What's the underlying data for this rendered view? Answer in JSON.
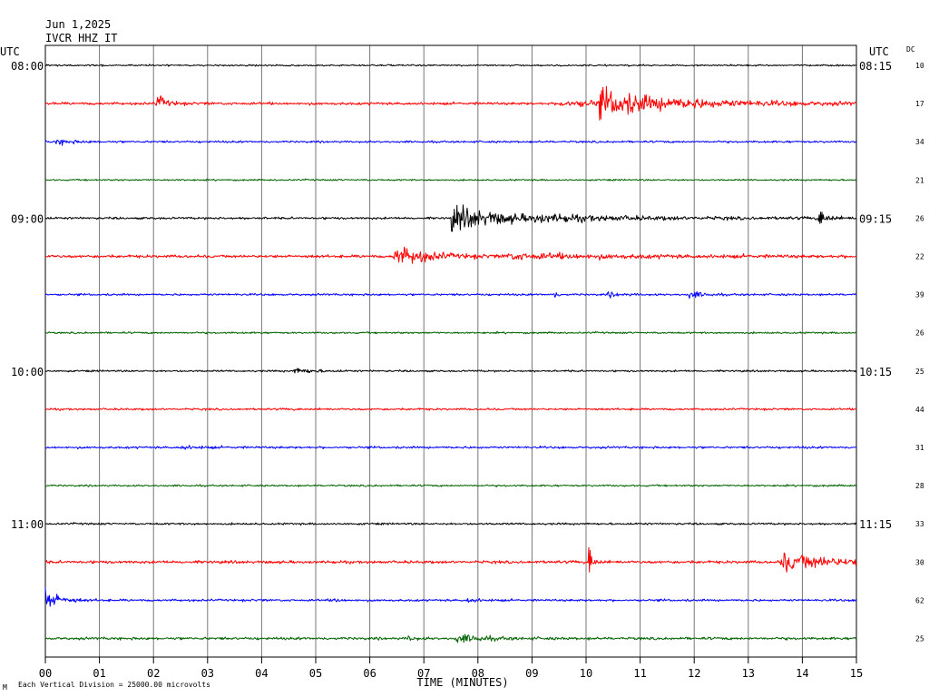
{
  "header": {
    "date": "Jun 1,2025",
    "station": "IVCR HHZ IT",
    "left_tz": "UTC",
    "right_tz": "UTC",
    "dc_label": "DC"
  },
  "footer": {
    "scale_note": "Each Vertical Division = 25000.00 microvolts",
    "corner_mark": "M"
  },
  "chart_data": {
    "type": "line",
    "title": "",
    "xlabel": "TIME (MINUTES)",
    "ylabel": "",
    "xlim": [
      0,
      15
    ],
    "x_ticks": [
      "00",
      "01",
      "02",
      "03",
      "04",
      "05",
      "06",
      "07",
      "08",
      "09",
      "10",
      "11",
      "12",
      "13",
      "14",
      "15"
    ],
    "grid": true,
    "trace_colors": [
      "#000000",
      "#ff0000",
      "#0000ff",
      "#006400"
    ],
    "rows": [
      {
        "left": "08:00",
        "right": "08:15",
        "dc": "10",
        "noise": 0.8,
        "events": []
      },
      {
        "left": "",
        "right": "",
        "dc": "17",
        "noise": 1.3,
        "events": [
          {
            "t": 2.05,
            "amp": 10,
            "dur": 0.25
          },
          {
            "t": 10.25,
            "amp": 12,
            "dur": 1.8
          },
          {
            "t": 9.5,
            "amp": 3,
            "dur": 5.0
          }
        ]
      },
      {
        "left": "",
        "right": "",
        "dc": "34",
        "noise": 1.0,
        "events": [
          {
            "t": 0.2,
            "amp": 2.5,
            "dur": 0.5
          }
        ]
      },
      {
        "left": "",
        "right": "",
        "dc": "21",
        "noise": 0.8,
        "events": []
      },
      {
        "left": "09:00",
        "right": "09:15",
        "dc": "26",
        "noise": 1.1,
        "events": [
          {
            "t": 7.5,
            "amp": 12,
            "dur": 1.6
          },
          {
            "t": 14.3,
            "amp": 10,
            "dur": 0.2
          },
          {
            "t": 9.0,
            "amp": 1.8,
            "dur": 5.0
          }
        ]
      },
      {
        "left": "",
        "right": "",
        "dc": "22",
        "noise": 1.4,
        "events": [
          {
            "t": 6.45,
            "amp": 10,
            "dur": 1.0
          },
          {
            "t": 8.5,
            "amp": 2.5,
            "dur": 4.0
          }
        ]
      },
      {
        "left": "",
        "right": "",
        "dc": "39",
        "noise": 1.0,
        "events": [
          {
            "t": 9.4,
            "amp": 4,
            "dur": 0.1
          },
          {
            "t": 11.9,
            "amp": 4,
            "dur": 0.35
          },
          {
            "t": 10.4,
            "amp": 2,
            "dur": 0.4
          }
        ]
      },
      {
        "left": "",
        "right": "",
        "dc": "26",
        "noise": 0.9,
        "events": []
      },
      {
        "left": "10:00",
        "right": "10:15",
        "dc": "25",
        "noise": 0.9,
        "events": [
          {
            "t": 4.6,
            "amp": 3,
            "dur": 0.5
          }
        ]
      },
      {
        "left": "",
        "right": "",
        "dc": "44",
        "noise": 1.0,
        "events": []
      },
      {
        "left": "",
        "right": "",
        "dc": "31",
        "noise": 1.1,
        "events": [
          {
            "t": 2.5,
            "amp": 2,
            "dur": 0.5
          }
        ]
      },
      {
        "left": "",
        "right": "",
        "dc": "28",
        "noise": 0.9,
        "events": []
      },
      {
        "left": "11:00",
        "right": "11:15",
        "dc": "33",
        "noise": 1.0,
        "events": []
      },
      {
        "left": "",
        "right": "",
        "dc": "30",
        "noise": 1.4,
        "events": [
          {
            "t": 10.05,
            "amp": 20,
            "dur": 0.1
          },
          {
            "t": 13.6,
            "amp": 10,
            "dur": 1.4
          }
        ]
      },
      {
        "left": "",
        "right": "",
        "dc": "62",
        "noise": 1.1,
        "events": [
          {
            "t": 0.0,
            "amp": 14,
            "dur": 0.35
          },
          {
            "t": 5.3,
            "amp": 2.5,
            "dur": 0.2
          },
          {
            "t": 7.8,
            "amp": 2.5,
            "dur": 0.3
          }
        ]
      },
      {
        "left": "",
        "right": "",
        "dc": "25",
        "noise": 1.3,
        "events": [
          {
            "t": 6.7,
            "amp": 3,
            "dur": 0.2
          },
          {
            "t": 7.6,
            "amp": 4,
            "dur": 0.8
          }
        ]
      }
    ]
  }
}
